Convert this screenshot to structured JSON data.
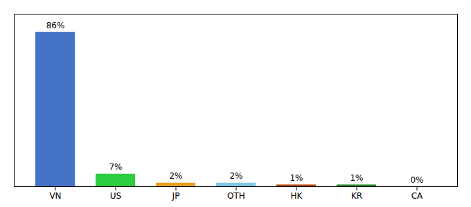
{
  "chart_data": {
    "type": "bar",
    "categories": [
      "VN",
      "US",
      "JP",
      "OTH",
      "HK",
      "KR",
      "CA"
    ],
    "values": [
      86,
      7,
      2,
      2,
      1,
      1,
      0
    ],
    "value_labels": [
      "86%",
      "7%",
      "2%",
      "2%",
      "1%",
      "1%",
      "0%"
    ],
    "colors": [
      "#4472c4",
      "#2ecc40",
      "#e8a020",
      "#7ec8e3",
      "#b34a10",
      "#2a8a2a",
      "#cccccc"
    ],
    "ylim": [
      0,
      96
    ],
    "data_labels": true,
    "tick_labels": "x",
    "grid": false
  }
}
